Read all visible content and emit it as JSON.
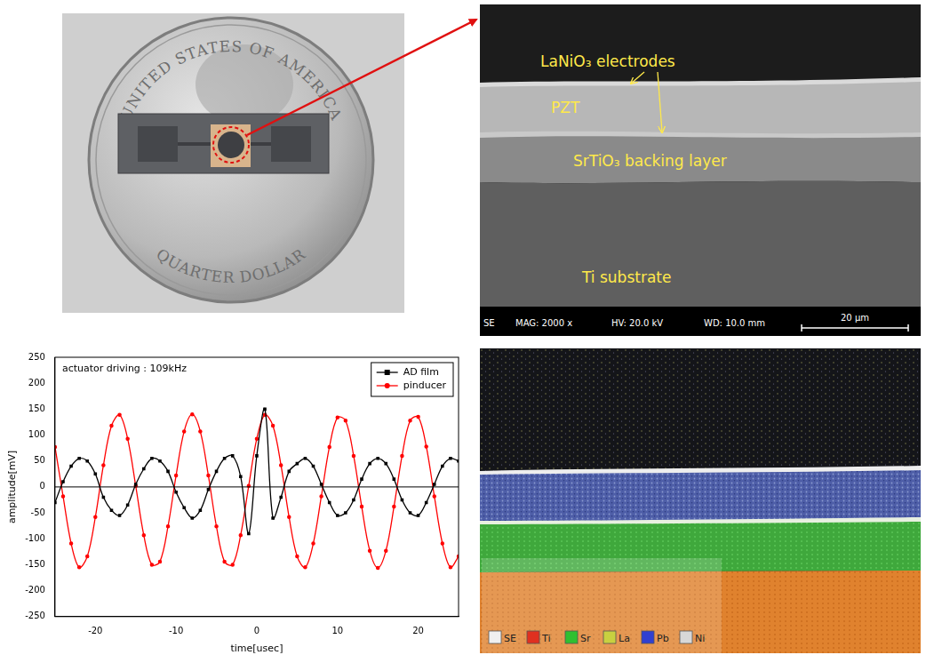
{
  "photo": {
    "coin_text": [
      "UNITED STATES OF AMERICA",
      "QUARTER DOLLAR"
    ]
  },
  "sem": {
    "labels": {
      "electrodes": "LaNiO₃ electrodes",
      "pzt": "PZT",
      "backing": "SrTiO₃ backing layer",
      "substrate": "Ti substrate"
    },
    "info": [
      "SE",
      "MAG: 2000 x",
      "HV: 20.0 kV",
      "WD: 10.0 mm"
    ],
    "scale_bar": "20 μm"
  },
  "eds": {
    "elements": [
      {
        "label": "SE",
        "color": "#f0f0f0"
      },
      {
        "label": "Ti",
        "color": "#e03020"
      },
      {
        "label": "Sr",
        "color": "#30c030"
      },
      {
        "label": "La",
        "color": "#c8d040"
      },
      {
        "label": "Pb",
        "color": "#3040d0"
      },
      {
        "label": "Ni",
        "color": "#d8d8d8"
      }
    ]
  },
  "chart_data": {
    "type": "line",
    "annotation": "actuator driving : 109kHz",
    "x_label": "time[usec]",
    "y_label": "amplitude[mV]",
    "x": [
      -25,
      -24,
      -23,
      -22,
      -21,
      -20,
      -19,
      -18,
      -17,
      -16,
      -15,
      -14,
      -13,
      -12,
      -11,
      -10,
      -9,
      -8,
      -7,
      -6,
      -5,
      -4,
      -3,
      -2,
      -1,
      0,
      1,
      2,
      3,
      4,
      5,
      6,
      7,
      8,
      9,
      10,
      11,
      12,
      13,
      14,
      15,
      16,
      17,
      18,
      19,
      20,
      21,
      22,
      23,
      24,
      25
    ],
    "xlim": [
      -25,
      25
    ],
    "xticks": [
      -20,
      -10,
      0,
      10,
      20
    ],
    "ylim": [
      -250,
      250
    ],
    "yticks": [
      -250,
      -200,
      -150,
      -100,
      -50,
      0,
      50,
      100,
      150,
      200,
      250
    ],
    "grid": false,
    "legend": "upper right",
    "series": [
      {
        "name": "AD film",
        "color": "#000000",
        "marker": "square",
        "values": [
          -30,
          10,
          40,
          55,
          50,
          25,
          -20,
          -45,
          -55,
          -35,
          5,
          35,
          55,
          50,
          30,
          -10,
          -40,
          -60,
          -45,
          -5,
          30,
          55,
          60,
          20,
          -90,
          60,
          150,
          -60,
          -20,
          30,
          45,
          55,
          40,
          5,
          -30,
          -55,
          -50,
          -25,
          15,
          45,
          55,
          45,
          15,
          -25,
          -50,
          -55,
          -30,
          5,
          40,
          55,
          50
        ]
      },
      {
        "name": "pinducer",
        "color": "#ff0000",
        "marker": "circle",
        "values": [
          77,
          -18,
          -109,
          -155,
          -134,
          -58,
          42,
          118,
          139,
          93,
          2,
          -93,
          -150,
          -144,
          -76,
          22,
          107,
          140,
          107,
          22,
          -76,
          -144,
          -150,
          -93,
          2,
          93,
          139,
          118,
          42,
          -58,
          -134,
          -155,
          -109,
          -18,
          77,
          134,
          128,
          60,
          -38,
          -123,
          -156,
          -123,
          -38,
          60,
          128,
          135,
          78,
          -18,
          -109,
          -155,
          -134
        ]
      }
    ]
  }
}
